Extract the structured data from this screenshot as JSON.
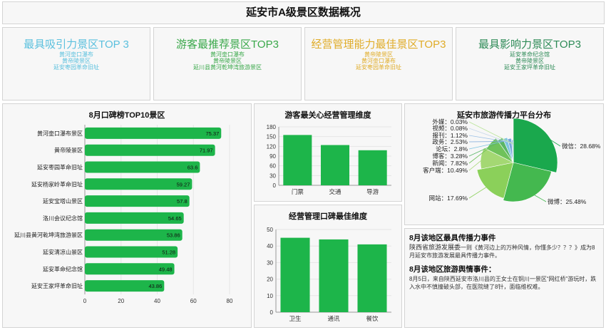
{
  "page_title": "延安市A级景区数据概况",
  "kpis": [
    {
      "title": "最具吸引力景区TOP 3",
      "color": "#5bc0de",
      "items": [
        "黄河壶口瀑布",
        "黄帝陵景区",
        "延安枣园革命旧址"
      ]
    },
    {
      "title": "游客最推荐景区TOP3",
      "color": "#3aa84a",
      "items": [
        "黄河壶口瀑布",
        "黄帝陵景区",
        "延川县黄河乾坤湾旅游景区"
      ]
    },
    {
      "title": "经营管理能力最佳景区TOP3",
      "color": "#e0ac28",
      "items": [
        "黄帝陵景区",
        "黄河壶口瀑布",
        "延安枣园革命旧址"
      ]
    },
    {
      "title": "最具影响力景区TOP3",
      "color": "#2e8b57",
      "items": [
        "延安革命纪念馆",
        "黄帝陵景区",
        "延安王家坪革命旧址"
      ]
    }
  ],
  "colors": {
    "bar": "#1db54a",
    "light_green": "#8bd05a",
    "dark_green": "#149a3d"
  },
  "charts": {
    "reputation": {
      "title": "8月口碑榜TOP10景区",
      "chart_data": {
        "type": "bar",
        "orientation": "horizontal",
        "title": "8月口碑榜TOP10景区",
        "categories": [
          "黄河壶口瀑布景区",
          "黄帝陵景区",
          "延安枣园革命旧址",
          "延安杨家岭革命旧址",
          "延安宝塔山景区",
          "洛川会议纪念馆",
          "延川县黄河乾坤湾旅游景区",
          "延安清凉山景区",
          "延安革命纪念馆",
          "延安王家坪革命旧址"
        ],
        "values": [
          75.37,
          71.97,
          63.6,
          59.27,
          57.8,
          54.65,
          53.86,
          51.28,
          49.48,
          43.86
        ],
        "value_labels": [
          "75.37",
          "71.97",
          "63.6",
          "59.27",
          "57.8",
          "54.65",
          "53.86",
          "51.28",
          "49.48",
          "43.86"
        ],
        "xlim": [
          0,
          80
        ],
        "xticks": [
          "0",
          "20",
          "40",
          "60",
          "80"
        ]
      }
    },
    "concern": {
      "title": "游客最关心经营管理维度",
      "chart_data": {
        "type": "bar",
        "title": "游客最关心经营管理维度",
        "categories": [
          "门票",
          "交通",
          "导游"
        ],
        "values": [
          155,
          124,
          108
        ],
        "ylim": [
          0,
          180
        ],
        "yticks": [
          "0",
          "30",
          "60",
          "90",
          "120",
          "150",
          "180"
        ]
      }
    },
    "management": {
      "title": "经营管理口碑最佳维度",
      "chart_data": {
        "type": "bar",
        "title": "经营管理口碑最佳维度",
        "categories": [
          "卫生",
          "通讯",
          "餐饮"
        ],
        "values": [
          45,
          44,
          41
        ],
        "ylim": [
          0,
          50
        ],
        "yticks": [
          "0",
          "10",
          "20",
          "30",
          "40",
          "50"
        ]
      }
    },
    "platforms": {
      "title": "延安市旅游传播力平台分布",
      "chart_data": {
        "type": "pie",
        "title": "延安市旅游传播力平台分布",
        "labels": [
          "微信",
          "微博",
          "网站",
          "客户端",
          "新闻",
          "博客",
          "论坛",
          "政务",
          "报刊",
          "视频",
          "外媒"
        ],
        "values": [
          28.68,
          25.48,
          17.69,
          10.49,
          7.82,
          3.28,
          2.8,
          2.53,
          1.12,
          0.08,
          0.03
        ],
        "slice_labels": [
          "微信：28.68%",
          "微博：25.48%",
          "网站：17.69%",
          "客户端：10.49%",
          "新闻：7.82%",
          "博客：3.28%",
          "论坛：2.8%",
          "政务：2.53%",
          "报刊：1.12%",
          "视频：0.08%",
          "外媒：0.03%"
        ]
      }
    }
  },
  "events": {
    "event1_title": "8月该地区最具传播力事件",
    "event1_lead": "陕西省旅游发展委",
    "event1_rest": "一则《黄河边上的万种风情，你懂多少？？？》成为8月延安市旅游发展最具传播力事件。",
    "event2_title": "8月该地区旅游舆情事件：",
    "event2_body": "8月5日，来自陕西延安市洛川县的王女士在铜川一景区“网红桥”游玩时，跌入水中不慎撞破头部，在医院缝了8针，面临维权难。"
  }
}
